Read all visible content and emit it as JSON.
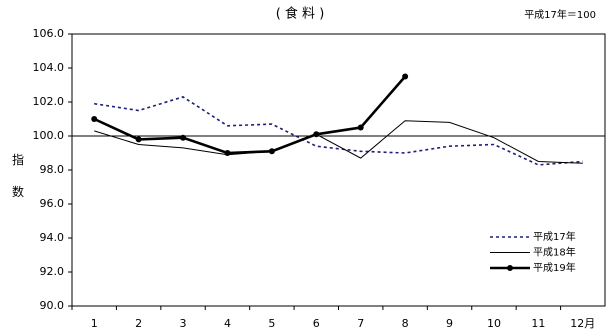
{
  "chart_data": {
    "type": "line",
    "title": "( 食 料 )",
    "note": "平成17年＝100",
    "y_label": "指数",
    "categories": [
      "1",
      "2",
      "3",
      "4",
      "5",
      "6",
      "7",
      "8",
      "9",
      "10",
      "11",
      "12月"
    ],
    "series": [
      {
        "name": "平成17年",
        "color": "#1f1f7a",
        "style": "dotted",
        "values": [
          101.9,
          101.5,
          102.3,
          100.6,
          100.7,
          99.4,
          99.1,
          99.0,
          99.4,
          99.5,
          98.3,
          98.5
        ]
      },
      {
        "name": "平成18年",
        "color": "#000000",
        "style": "solid",
        "values": [
          100.3,
          99.5,
          99.3,
          98.9,
          99.1,
          100.1,
          98.7,
          100.9,
          100.8,
          99.9,
          98.5,
          98.4
        ]
      },
      {
        "name": "平成19年",
        "color": "#000000",
        "style": "bold",
        "values": [
          101.0,
          99.8,
          99.9,
          99.0,
          99.1,
          100.1,
          100.5,
          103.5,
          null,
          null,
          null,
          null
        ]
      }
    ],
    "ylim": [
      90,
      106
    ],
    "yticks": [
      {
        "value": 90,
        "label": "90.0"
      },
      {
        "value": 92,
        "label": "92.0"
      },
      {
        "value": 94,
        "label": "94.0"
      },
      {
        "value": 96,
        "label": "96.0"
      },
      {
        "value": 98,
        "label": "98.0"
      },
      {
        "value": 100,
        "label": "100.0"
      },
      {
        "value": 102,
        "label": "102.0"
      },
      {
        "value": 104,
        "label": "104.0"
      },
      {
        "value": 106,
        "label": "106.0"
      }
    ],
    "baseline": 100,
    "legend": "lower right"
  }
}
